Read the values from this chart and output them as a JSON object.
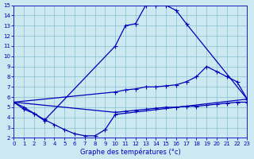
{
  "title": "Graphe des températures (°c)",
  "bg_color": "#cce8f0",
  "grid_color": "#88bfcf",
  "line_color": "#0000bb",
  "xlim": [
    0,
    23
  ],
  "ylim": [
    2,
    15
  ],
  "xticks": [
    0,
    1,
    2,
    3,
    4,
    5,
    6,
    7,
    8,
    9,
    10,
    11,
    12,
    13,
    14,
    15,
    16,
    17,
    18,
    19,
    20,
    21,
    22,
    23
  ],
  "yticks": [
    2,
    3,
    4,
    5,
    6,
    7,
    8,
    9,
    10,
    11,
    12,
    13,
    14,
    15
  ],
  "line1_x": [
    0,
    1,
    2,
    3,
    10,
    11,
    12,
    13,
    14,
    15,
    16,
    17,
    23
  ],
  "line1_y": [
    5.5,
    5.0,
    4.4,
    3.7,
    11.0,
    13.0,
    13.2,
    15.0,
    15.0,
    15.0,
    14.5,
    13.2,
    5.8
  ],
  "line2_x": [
    0,
    10,
    11,
    12,
    13,
    14,
    15,
    16,
    17,
    18,
    19,
    20,
    21,
    22,
    23
  ],
  "line2_y": [
    5.5,
    6.5,
    6.7,
    6.8,
    7.0,
    7.0,
    7.1,
    7.2,
    7.5,
    8.0,
    9.0,
    8.5,
    8.0,
    7.5,
    5.8
  ],
  "line3_x": [
    0,
    1,
    2,
    3,
    4,
    5,
    6,
    7,
    8,
    9,
    10,
    23
  ],
  "line3_y": [
    5.5,
    4.8,
    4.4,
    3.8,
    3.3,
    2.8,
    2.4,
    2.2,
    2.2,
    2.8,
    4.3,
    5.8
  ],
  "line4_x": [
    0,
    10,
    11,
    12,
    13,
    14,
    15,
    16,
    17,
    18,
    19,
    20,
    21,
    22,
    23
  ],
  "line4_y": [
    5.5,
    4.5,
    4.6,
    4.7,
    4.8,
    4.9,
    5.0,
    5.0,
    5.1,
    5.1,
    5.2,
    5.3,
    5.4,
    5.5,
    5.5
  ],
  "tick_fontsize": 5,
  "xlabel_fontsize": 6,
  "linewidth": 0.9,
  "markersize": 1.8
}
